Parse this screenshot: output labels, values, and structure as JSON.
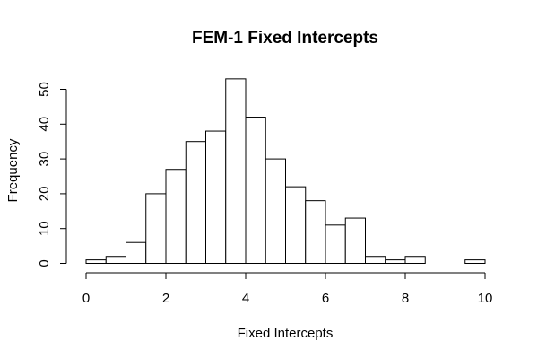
{
  "chart_data": {
    "type": "bar",
    "title": "FEM-1 Fixed Intercepts",
    "xlabel": "Fixed Intercepts",
    "ylabel": "Frequency",
    "bin_width": 0.5,
    "bin_starts": [
      0,
      0.5,
      1,
      1.5,
      2,
      2.5,
      3,
      3.5,
      4,
      4.5,
      5,
      5.5,
      6,
      6.5,
      7,
      7.5,
      8,
      8.5,
      9,
      9.5
    ],
    "values": [
      1,
      2,
      6,
      20,
      27,
      35,
      38,
      53,
      42,
      30,
      22,
      18,
      11,
      13,
      2,
      1,
      2,
      0,
      0,
      1
    ],
    "xlim": [
      0,
      10
    ],
    "ylim": [
      0,
      50
    ],
    "x_ticks": [
      "0",
      "2",
      "4",
      "6",
      "8",
      "10"
    ],
    "y_ticks": [
      "0",
      "10",
      "20",
      "30",
      "40",
      "50"
    ],
    "grid": false,
    "legend": "none"
  }
}
